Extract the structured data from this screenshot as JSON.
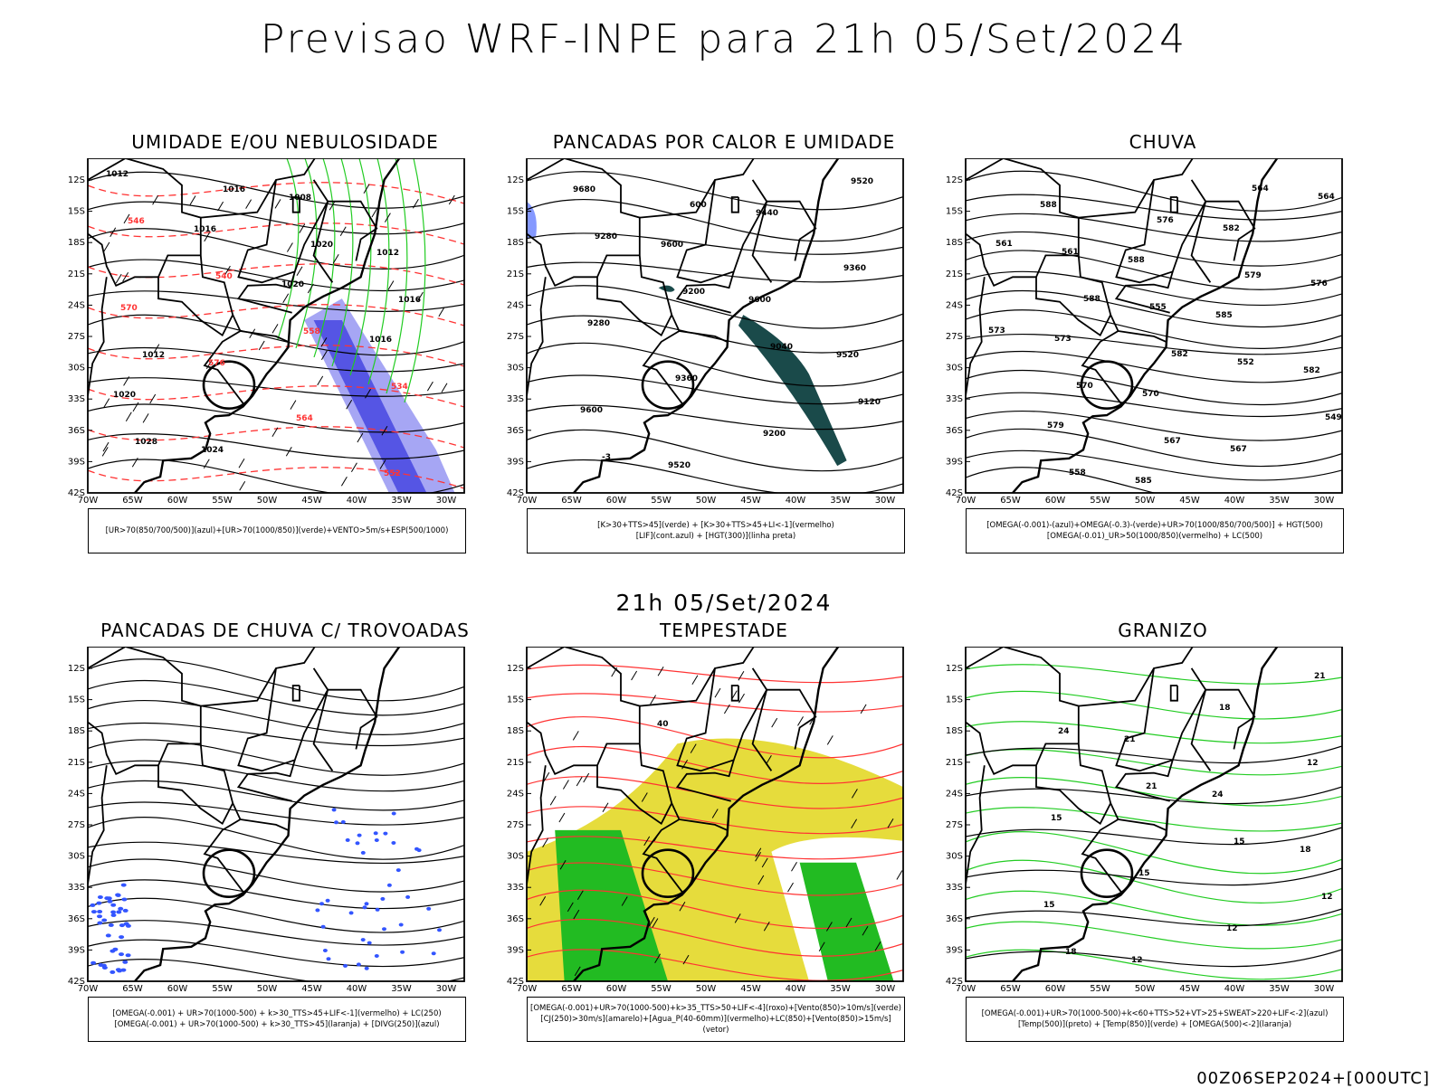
{
  "header": {
    "title": "Previsao WRF-INPE  para 21h 05/Set/2024"
  },
  "subtitle": "21h 05/Set/2024",
  "footer": "00Z06SEP2024+[000UTC]",
  "axes": {
    "lat_labels": [
      "12S",
      "15S",
      "18S",
      "21S",
      "24S",
      "27S",
      "30S",
      "33S",
      "36S",
      "39S",
      "42S"
    ],
    "lon_labels": [
      "70W",
      "65W",
      "60W",
      "55W",
      "50W",
      "45W",
      "40W",
      "35W",
      "30W"
    ]
  },
  "colors": {
    "blue": "#3355ff",
    "green": "#22cc22",
    "red": "#ff3333",
    "yellow": "#e6dc3c",
    "darkgreen": "#1a4a4a"
  },
  "panels": [
    {
      "id": "umidade",
      "title": "UMIDADE E/OU NEBULOSIDADE",
      "legend": [
        "[UR>70(850/700/500)](azul)+[UR>70(1000/850)](verde)+VENTO>5m/s+ESP(500/1000)"
      ],
      "labels": [
        "1012",
        "1016",
        "1020",
        "1016",
        "1020",
        "1024",
        "1008",
        "1012",
        "570",
        "576",
        "564",
        "552",
        "546",
        "540",
        "558",
        "534",
        "1028",
        "1016",
        "1020",
        "1016",
        "1012"
      ]
    },
    {
      "id": "pancadas-calor",
      "title": "PANCADAS POR CALOR E UMIDADE",
      "legend": [
        "[K>30+TTS>45](verde) + [K>30+TTS>45+LI<-1](vermelho)",
        "[LIF](cont.azul) + [HGT(300)](linha preta)"
      ],
      "labels": [
        "9680",
        "9600",
        "9600",
        "9520",
        "9600",
        "9520",
        "9440",
        "9360",
        "9280",
        "9360",
        "9200",
        "9520",
        "9280",
        "9200",
        "9040",
        "9120",
        "-3",
        "600"
      ]
    },
    {
      "id": "chuva",
      "title": "CHUVA",
      "legend": [
        "[OMEGA(-0.001)-(azul)+OMEGA(-0.3)-(verde)+UR>70(1000/850/700/500)] + HGT(500)",
        "[OMEGA(-0.01)_UR>50(1000/850)(vermelho) + LC(500)"
      ],
      "labels": [
        "588",
        "588",
        "585",
        "582",
        "579",
        "585",
        "582",
        "576",
        "573",
        "570",
        "567",
        "564",
        "561",
        "555",
        "552",
        "549",
        "558",
        "576",
        "579",
        "573",
        "570",
        "567",
        "564",
        "561",
        "588",
        "582"
      ]
    },
    {
      "id": "pancadas-trovoadas",
      "title": "PANCADAS DE CHUVA C/ TROVOADAS",
      "legend": [
        "[OMEGA(-0.001) + UR>70(1000-500) + k>30_TTS>45+LIF<-1](vermelho) + LC(250)",
        "[OMEGA(-0.001) + UR>70(1000-500) + k>30_TTS>45](laranja) + [DIVG(250)](azul)"
      ],
      "labels": []
    },
    {
      "id": "tempestade",
      "title": "TEMPESTADE",
      "legend": [
        "[OMEGA(-0.001)+UR>70(1000-500)+k>35_TTS>50+LIF<-4](roxo)+[Vento(850)>10m/s](verde)",
        "[CJ(250)>30m/s](amarelo)+[Agua_P(40-60mm)](vermelho)+LC(850)+[Vento(850)>15m/s](vetor)"
      ],
      "labels": [
        "40"
      ]
    },
    {
      "id": "granizo",
      "title": "GRANIZO",
      "legend": [
        "[OMEGA(-0.001)+UR>70(1000-500)+k<60+TTS>52+VT>25+SWEAT>220+LIF<-2](azul)",
        "[Temp(500)](preto) + [Temp(850)](verde) + [OMEGA(500)<-2](laranja)"
      ],
      "labels": [
        "21",
        "24",
        "18",
        "15",
        "12",
        "18",
        "12",
        "15",
        "15",
        "12",
        "21",
        "24",
        "21",
        "15",
        "12",
        "18"
      ]
    }
  ]
}
